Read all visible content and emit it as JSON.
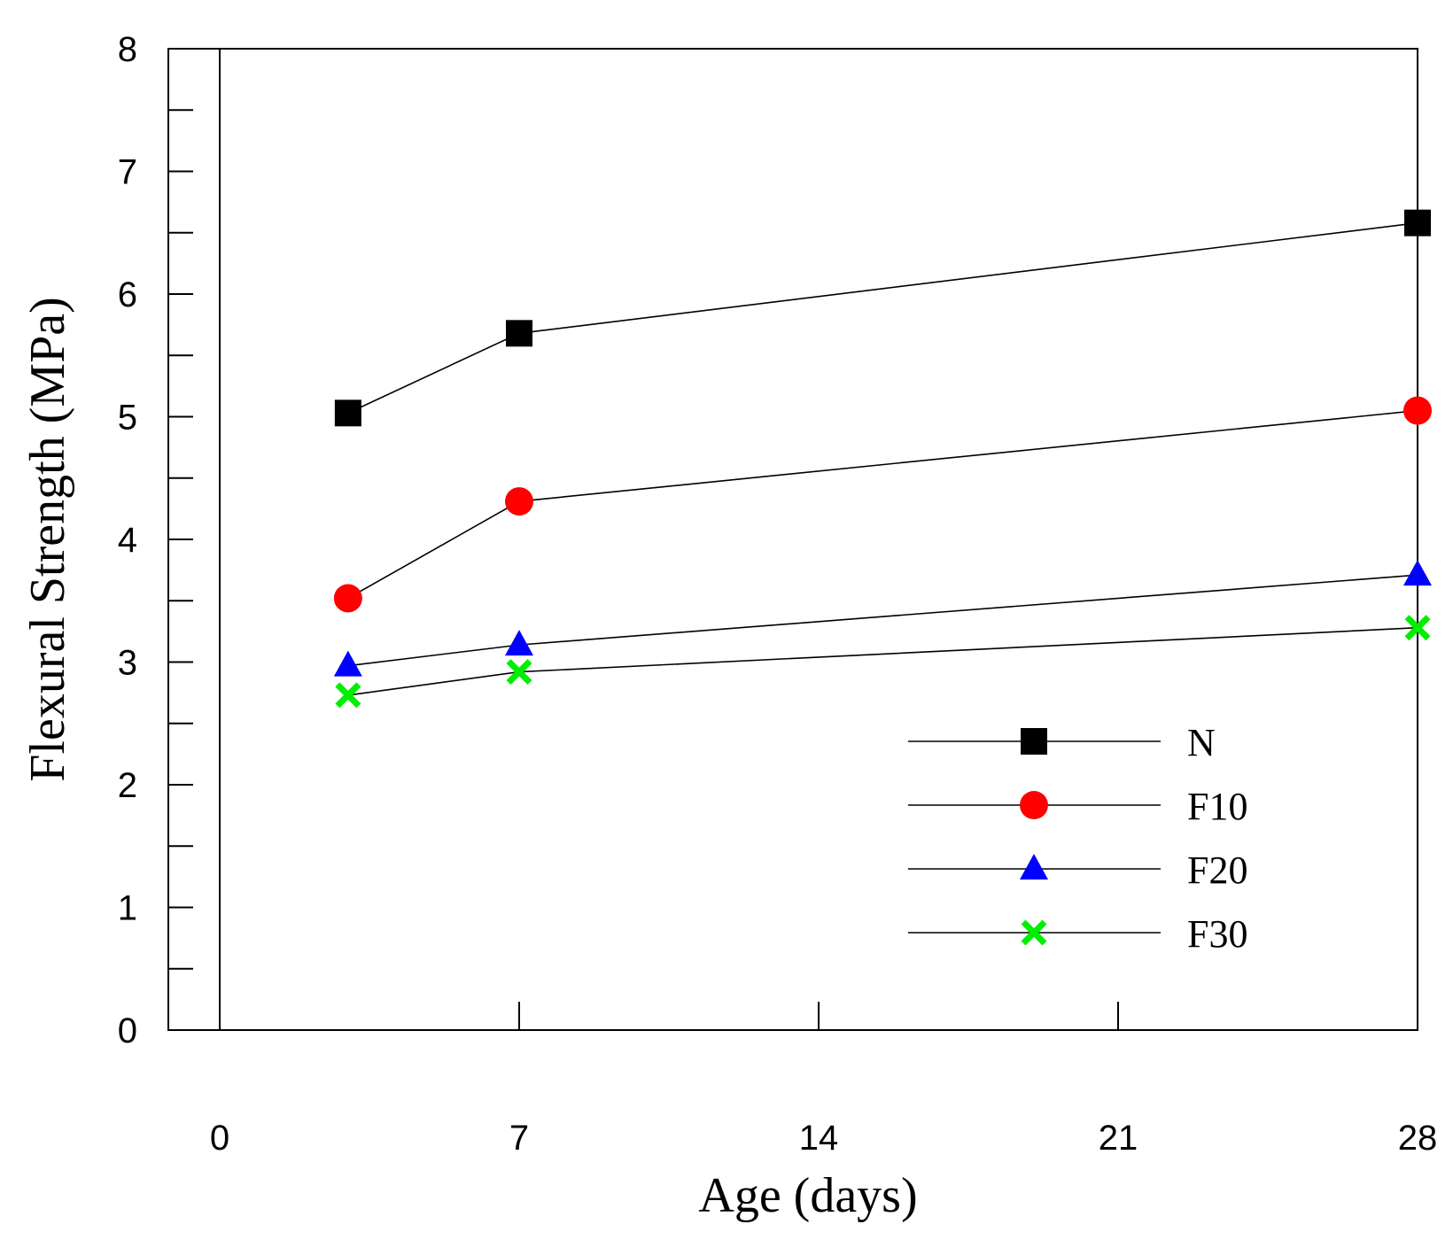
{
  "chart_data": {
    "type": "line",
    "title": "",
    "xlabel": "Age (days)",
    "ylabel": "Flexural Strength (MPa)",
    "xlim": [
      -2.5,
      28
    ],
    "ylim": [
      0,
      8
    ],
    "xticks": [
      0,
      7,
      14,
      21,
      28
    ],
    "yticks": [
      0,
      1,
      2,
      3,
      4,
      5,
      6,
      7,
      8
    ],
    "grid": false,
    "legend_position": "bottom-right",
    "series": [
      {
        "name": "N",
        "x": [
          3,
          7,
          28
        ],
        "y": [
          5.03,
          5.68,
          6.58
        ],
        "marker": "square",
        "color": "#000000"
      },
      {
        "name": "F10",
        "x": [
          3,
          7,
          28
        ],
        "y": [
          3.52,
          4.31,
          5.05
        ],
        "marker": "circle",
        "color": "#ff0000"
      },
      {
        "name": "F20",
        "x": [
          3,
          7,
          28
        ],
        "y": [
          2.97,
          3.14,
          3.71
        ],
        "marker": "triangle",
        "color": "#0000ff"
      },
      {
        "name": "F30",
        "x": [
          3,
          7,
          28
        ],
        "y": [
          2.73,
          2.92,
          3.28
        ],
        "marker": "cross",
        "color": "#00ee00"
      }
    ]
  }
}
